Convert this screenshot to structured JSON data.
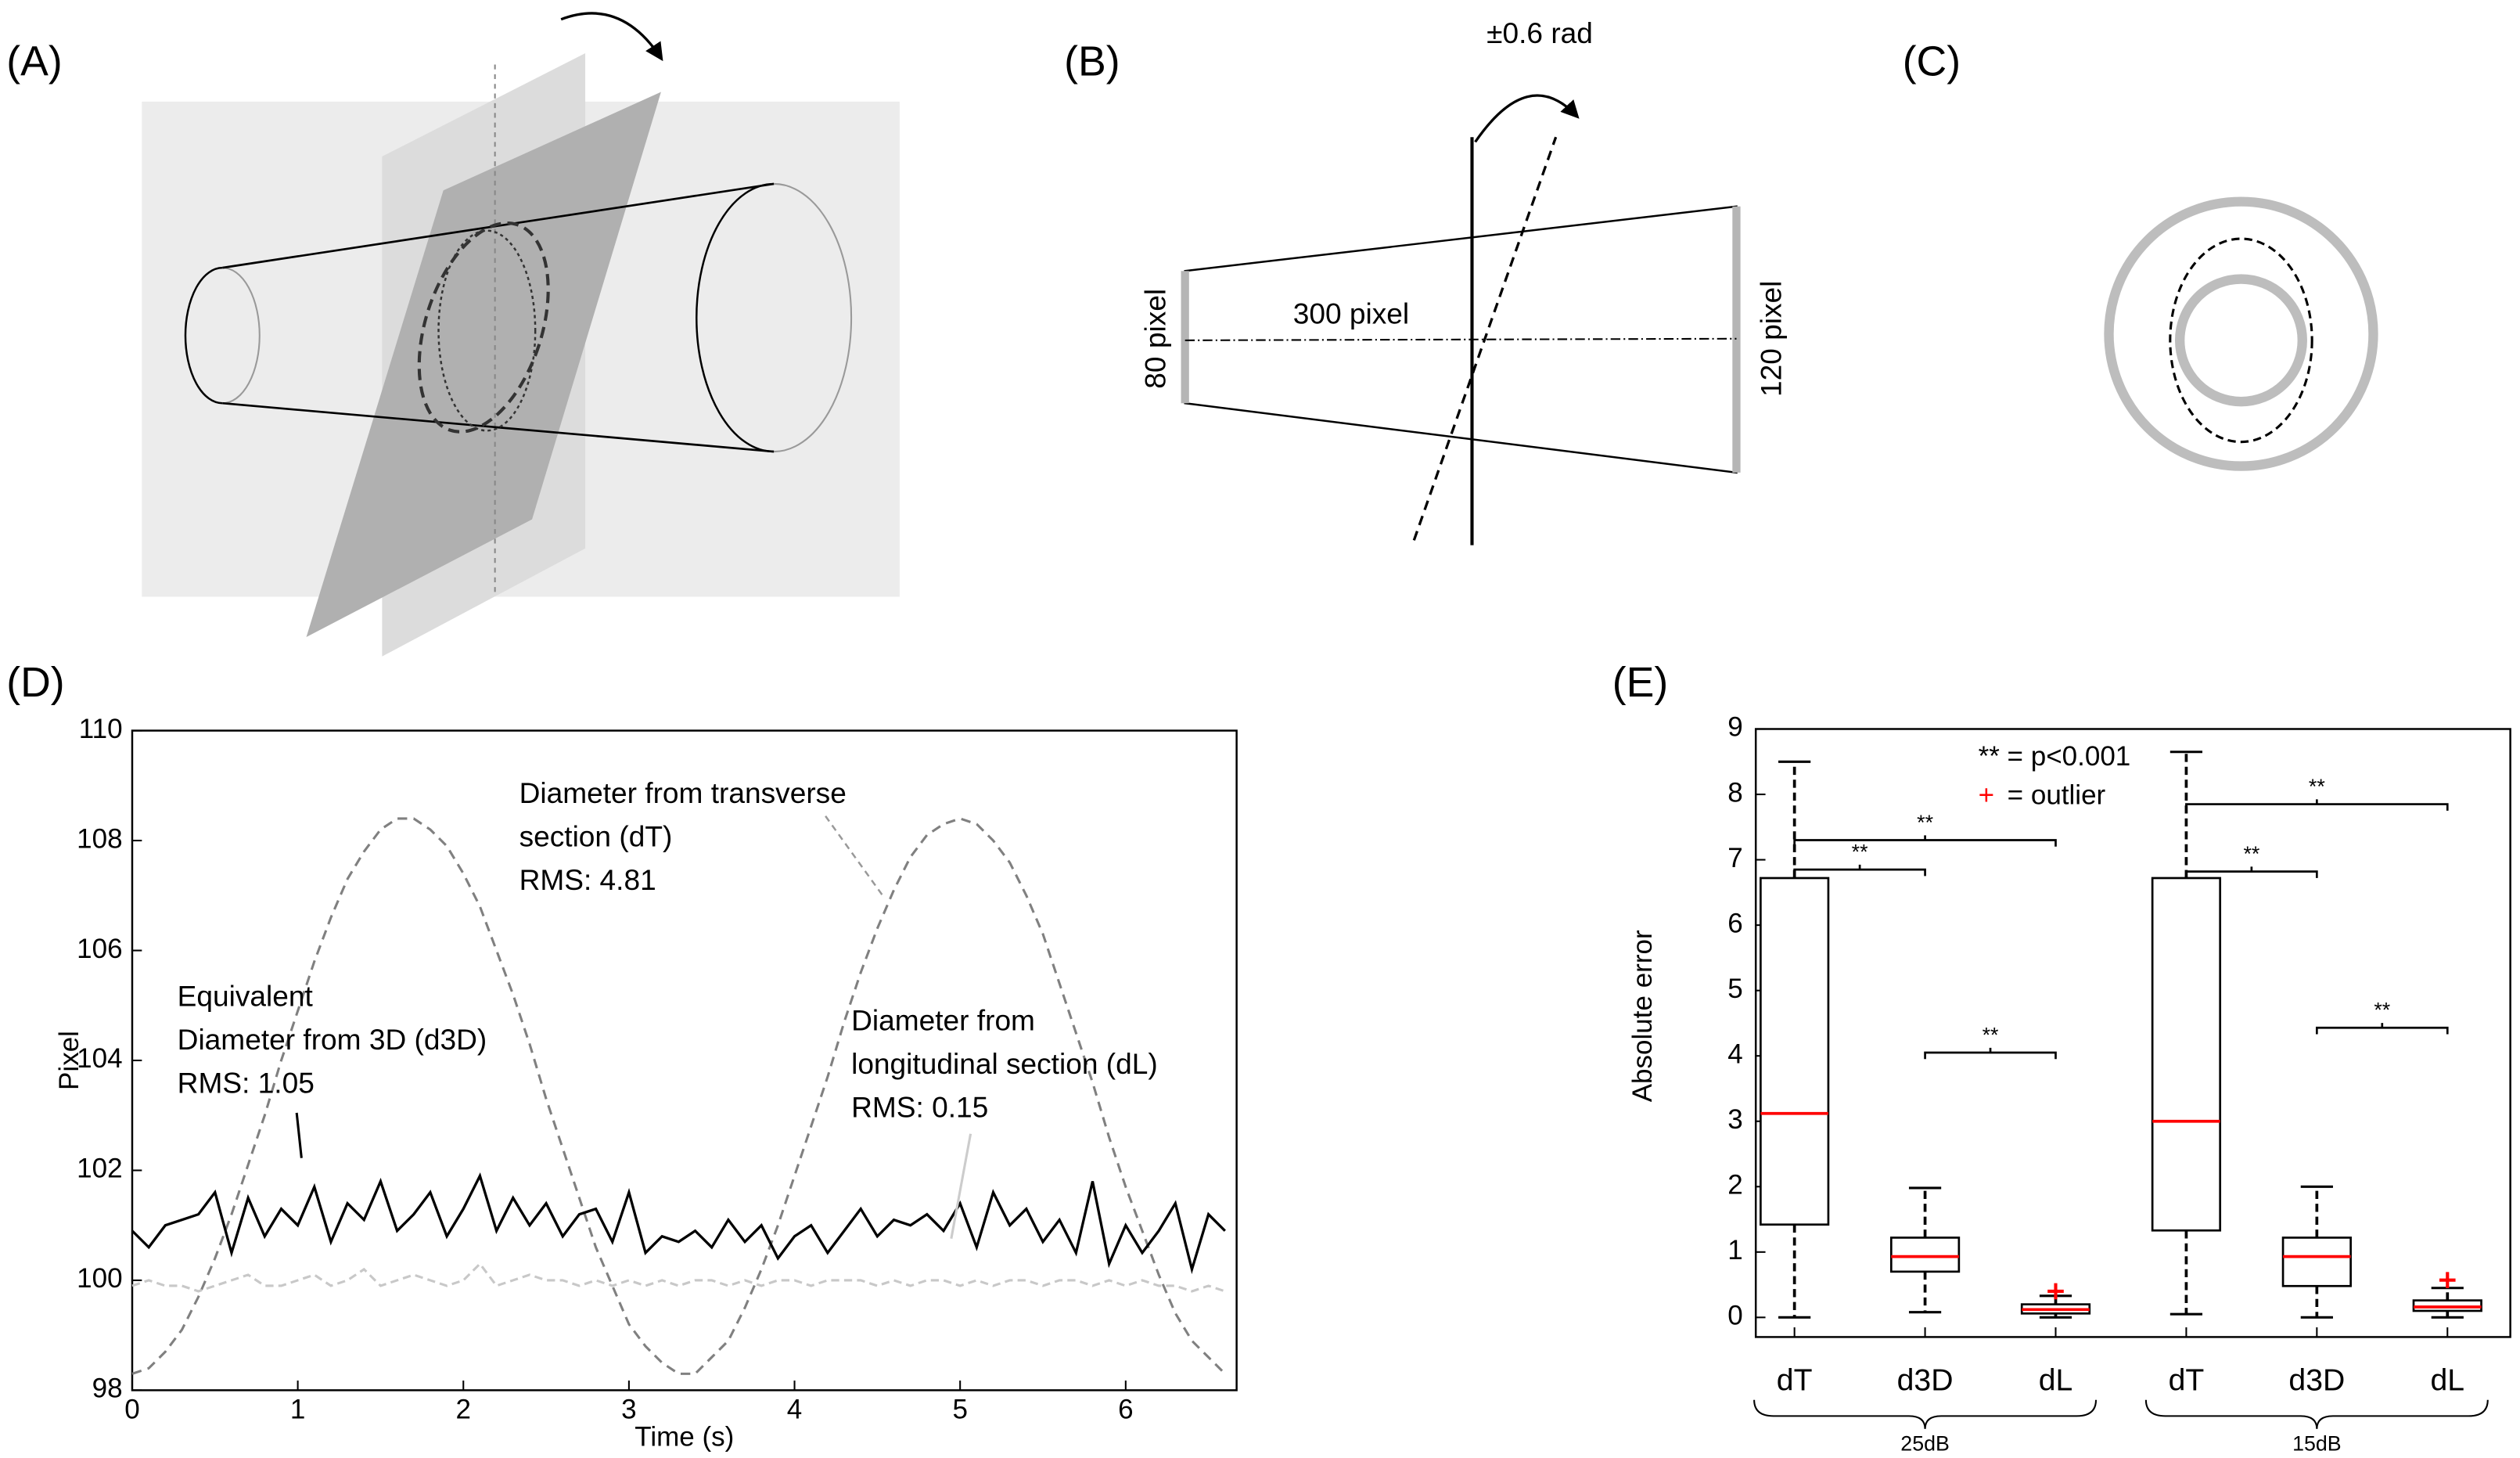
{
  "panels": {
    "a": {
      "label": "(A)"
    },
    "b": {
      "label": "(B)",
      "rotation": "±0.6 rad",
      "length": "300 pixel",
      "left": "80 pixel",
      "right": "120 pixel"
    },
    "c": {
      "label": "(C)"
    }
  },
  "chart_data": [
    {
      "type": "line",
      "panel_label": "(D)",
      "xlabel": "Time (s)",
      "ylabel": "Pixel",
      "x": [
        0,
        0.1,
        0.2,
        0.3,
        0.4,
        0.5,
        0.6,
        0.7,
        0.8,
        0.9,
        1,
        1.1,
        1.2,
        1.3,
        1.4,
        1.5,
        1.6,
        1.7,
        1.8,
        1.9,
        2,
        2.1,
        2.2,
        2.3,
        2.4,
        2.5,
        2.6,
        2.7,
        2.8,
        2.9,
        3,
        3.1,
        3.2,
        3.3,
        3.4,
        3.5,
        3.6,
        3.7,
        3.8,
        3.9,
        4,
        4.1,
        4.2,
        4.3,
        4.4,
        4.5,
        4.6,
        4.7,
        4.8,
        4.9,
        5,
        5.1,
        5.2,
        5.3,
        5.4,
        5.5,
        5.6,
        5.7,
        5.8,
        5.9,
        6,
        6.1,
        6.2,
        6.3,
        6.4,
        6.5,
        6.6
      ],
      "xlim": [
        0,
        6.67
      ],
      "xticks": [
        0,
        1,
        2,
        3,
        4,
        5,
        6
      ],
      "ylim": [
        98,
        110
      ],
      "yticks": [
        98,
        100,
        102,
        104,
        106,
        108,
        110
      ],
      "series": [
        {
          "annotation": [
            "Diameter from transverse",
            "section (dT)",
            "RMS: 4.81"
          ],
          "color": "#808080",
          "dash": "6,4",
          "values": [
            98.3,
            98.4,
            98.7,
            99.1,
            99.7,
            100.4,
            101.2,
            102.1,
            103.0,
            104.0,
            104.9,
            105.8,
            106.6,
            107.3,
            107.8,
            108.2,
            108.4,
            108.4,
            108.2,
            107.9,
            107.4,
            106.8,
            106.0,
            105.2,
            104.3,
            103.3,
            102.4,
            101.5,
            100.6,
            99.9,
            99.2,
            98.8,
            98.5,
            98.3,
            98.3,
            98.6,
            98.9,
            99.5,
            100.2,
            101.0,
            101.9,
            102.8,
            103.7,
            104.7,
            105.6,
            106.4,
            107.1,
            107.7,
            108.1,
            108.3,
            108.4,
            108.3,
            108.0,
            107.6,
            107.0,
            106.3,
            105.4,
            104.5,
            103.6,
            102.6,
            101.7,
            100.9,
            100.1,
            99.4,
            98.9,
            98.6,
            98.3
          ]
        },
        {
          "annotation": [
            "Equivalent",
            "Diameter from 3D (d3D)",
            "RMS: 1.05"
          ],
          "color": "#000000",
          "dash": "none",
          "values": [
            100.9,
            100.6,
            101.0,
            101.1,
            101.2,
            101.6,
            100.5,
            101.5,
            100.8,
            101.3,
            101.0,
            101.7,
            100.7,
            101.4,
            101.1,
            101.8,
            100.9,
            101.2,
            101.6,
            100.8,
            101.3,
            101.9,
            100.9,
            101.5,
            101.0,
            101.4,
            100.8,
            101.2,
            101.3,
            100.7,
            101.6,
            100.5,
            100.8,
            100.7,
            100.9,
            100.6,
            101.1,
            100.7,
            101.0,
            100.4,
            100.8,
            101.0,
            100.5,
            100.9,
            101.3,
            100.8,
            101.1,
            101.0,
            101.2,
            100.9,
            101.4,
            100.6,
            101.6,
            101.0,
            101.3,
            100.7,
            101.1,
            100.5,
            101.8,
            100.3,
            101.0,
            100.5,
            100.9,
            101.4,
            100.2,
            101.2,
            100.9
          ]
        },
        {
          "annotation": [
            "Diameter from",
            "longitudinal section (dL)",
            "RMS: 0.15"
          ],
          "color": "#c8c8c8",
          "dash": "5,3",
          "values": [
            99.9,
            100.0,
            99.9,
            99.9,
            99.8,
            99.9,
            100.0,
            100.1,
            99.9,
            99.9,
            100.0,
            100.1,
            99.9,
            100.0,
            100.2,
            99.9,
            100.0,
            100.1,
            100.0,
            99.9,
            100.0,
            100.3,
            99.9,
            100.0,
            100.1,
            100.0,
            100.0,
            99.9,
            100.0,
            99.9,
            100.0,
            99.9,
            100.0,
            99.9,
            100.0,
            100.0,
            99.9,
            100.0,
            99.9,
            100.0,
            100.0,
            99.9,
            100.0,
            100.0,
            100.0,
            99.9,
            100.0,
            99.9,
            100.0,
            100.0,
            99.9,
            100.0,
            99.9,
            100.0,
            100.0,
            99.9,
            100.0,
            100.0,
            99.9,
            100.0,
            99.9,
            100.0,
            99.9,
            99.9,
            99.8,
            99.9,
            99.8
          ]
        }
      ]
    },
    {
      "type": "box",
      "panel_label": "(E)",
      "ylabel": "Absolute error",
      "ylim": [
        -0.3,
        9
      ],
      "yticks": [
        0,
        1,
        2,
        3,
        4,
        5,
        6,
        7,
        8,
        9
      ],
      "categories": [
        "dT",
        "d3D",
        "dL",
        "dT",
        "d3D",
        "dL"
      ],
      "groups": [
        "25dB",
        "15dB"
      ],
      "box_color": "#000000",
      "median_color": "#ff0000",
      "outlier_color": "#ff0000",
      "boxes": [
        {
          "whisker_low": 0,
          "q1": 1.42,
          "median": 3.12,
          "q3": 6.72,
          "whisker_high": 8.5,
          "outliers": []
        },
        {
          "whisker_low": 0.08,
          "q1": 0.7,
          "median": 0.93,
          "q3": 1.22,
          "whisker_high": 1.98,
          "outliers": []
        },
        {
          "whisker_low": 0,
          "q1": 0.06,
          "median": 0.12,
          "q3": 0.2,
          "whisker_high": 0.33,
          "outliers": [
            0.4
          ]
        },
        {
          "whisker_low": 0.05,
          "q1": 1.33,
          "median": 3.0,
          "q3": 6.72,
          "whisker_high": 8.65,
          "outliers": []
        },
        {
          "whisker_low": 0,
          "q1": 0.48,
          "median": 0.93,
          "q3": 1.22,
          "whisker_high": 2.0,
          "outliers": []
        },
        {
          "whisker_low": 0,
          "q1": 0.1,
          "median": 0.16,
          "q3": 0.26,
          "whisker_high": 0.45,
          "outliers": [
            0.57
          ]
        }
      ],
      "significance": [
        {
          "from": 0,
          "to": 2,
          "y": 7.3,
          "label": "**"
        },
        {
          "from": 0,
          "to": 1,
          "y": 6.85,
          "label": "**"
        },
        {
          "from": 1,
          "to": 2,
          "y": 4.05,
          "label": "**"
        },
        {
          "from": 3,
          "to": 5,
          "y": 7.85,
          "label": "**"
        },
        {
          "from": 3,
          "to": 4,
          "y": 6.82,
          "label": "**"
        },
        {
          "from": 4,
          "to": 5,
          "y": 4.43,
          "label": "**"
        }
      ],
      "legend": {
        "stars_text": "** = p<0.001",
        "outlier_marker": "+",
        "outlier_text": "= outlier"
      }
    }
  ]
}
